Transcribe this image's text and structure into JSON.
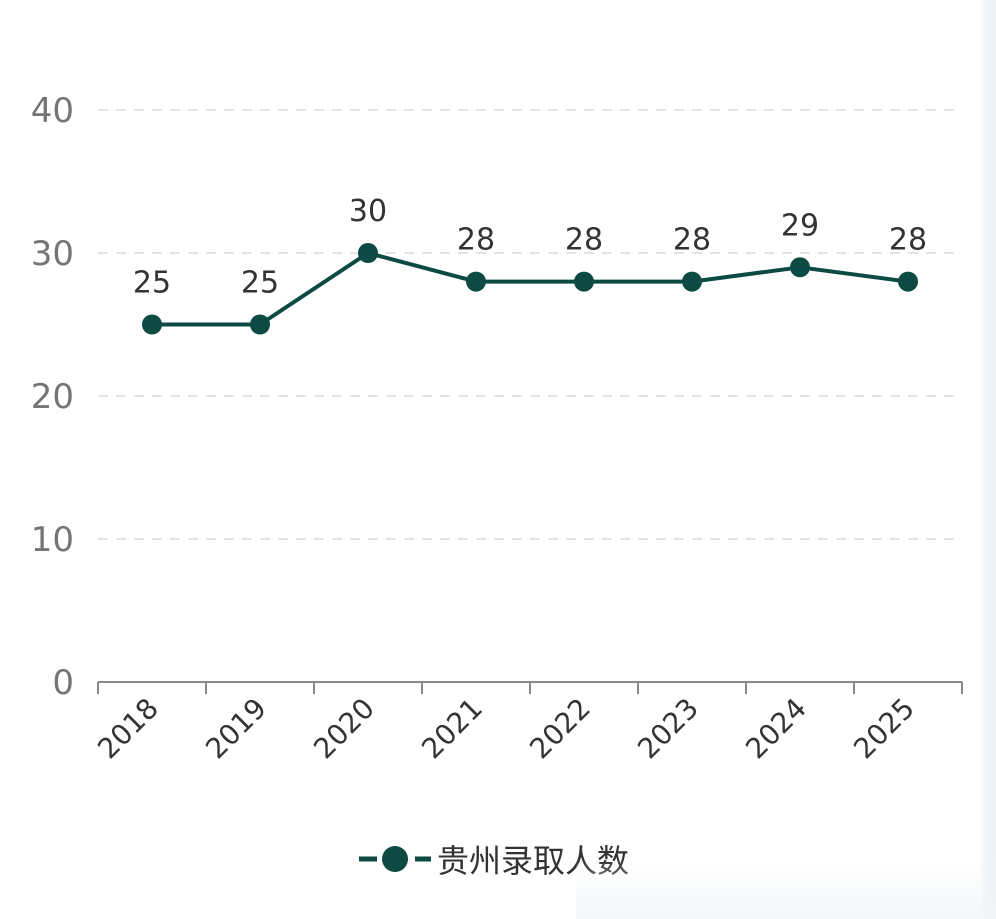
{
  "chart_data": {
    "type": "line",
    "categories": [
      "2018",
      "2019",
      "2020",
      "2021",
      "2022",
      "2023",
      "2024",
      "2025"
    ],
    "series": [
      {
        "name": "贵州录取人数",
        "values": [
          25,
          25,
          30,
          28,
          28,
          28,
          29,
          28
        ]
      }
    ],
    "yticks": [
      "0",
      "10",
      "20",
      "30",
      "40"
    ],
    "ylim": [
      0,
      40
    ],
    "grid": true,
    "legend": "bottom-center",
    "data_labels": true,
    "colors": {
      "line": "#0d4a43",
      "grid": "#e3e3e3",
      "axis": "#8a8a8a"
    }
  }
}
